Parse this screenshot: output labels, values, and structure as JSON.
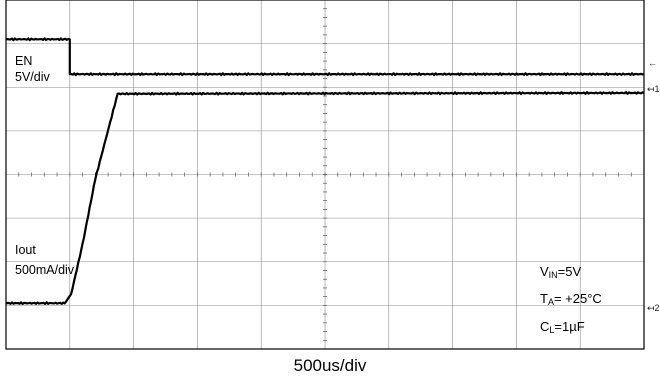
{
  "chart_data": {
    "type": "line",
    "time_scale": "500us/div",
    "grid": {
      "horizontal_divisions": 10,
      "vertical_divisions": 8,
      "minor_ticks": true
    },
    "channels": [
      {
        "name": "EN",
        "scale": "5V/div",
        "marker": "1",
        "points": [
          [
            0,
            7.1
          ],
          [
            1.0,
            7.1
          ],
          [
            1.0,
            6.3
          ],
          [
            10,
            6.3
          ]
        ]
      },
      {
        "name": "Iout",
        "scale": "500mA/div",
        "marker": "2",
        "points": [
          [
            0,
            1.05
          ],
          [
            0.92,
            1.05
          ],
          [
            1.02,
            1.25
          ],
          [
            1.2,
            2.4
          ],
          [
            1.4,
            3.9
          ],
          [
            1.75,
            5.85
          ],
          [
            10,
            5.87
          ]
        ]
      }
    ]
  },
  "labels": {
    "en_name": "EN",
    "en_scale": "5V/div",
    "iout_name": "Iout",
    "iout_scale": "500mA/div",
    "vin_main": "V",
    "vin_sub": "IN",
    "vin_value": "=5V",
    "ta_main": "T",
    "ta_sub": "A",
    "ta_value": "= +25°C",
    "cl_main": "C",
    "cl_sub": "L",
    "cl_value": "=1µF",
    "xlabel": "500us/div",
    "marker_ch1": "1",
    "marker_ch2": "2"
  }
}
